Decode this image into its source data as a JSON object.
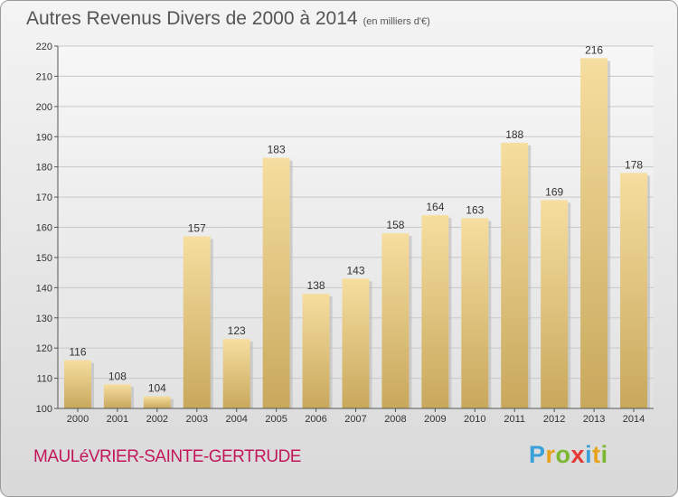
{
  "title": "Autres Revenus Divers de 2000 à 2014",
  "subtitle": "(en milliers d'€)",
  "place": "MAULéVRIER-SAINTE-GERTRUDE",
  "logo": {
    "letters": [
      "P",
      "r",
      "o",
      "x",
      "i",
      "t",
      "i"
    ],
    "colors": [
      "#3aa0d8",
      "#e8a21a",
      "#7cb82f",
      "#e53935",
      "#3aa0d8",
      "#e8a21a",
      "#7cb82f"
    ]
  },
  "chart_data": {
    "type": "bar",
    "title": "Autres Revenus Divers de 2000 à 2014",
    "subtitle": "(en milliers d'€)",
    "xlabel": "",
    "ylabel": "",
    "categories": [
      "2000",
      "2001",
      "2002",
      "2003",
      "2004",
      "2005",
      "2006",
      "2007",
      "2008",
      "2009",
      "2010",
      "2011",
      "2012",
      "2013",
      "2014"
    ],
    "values": [
      116,
      108,
      104,
      157,
      123,
      183,
      138,
      143,
      158,
      164,
      163,
      188,
      169,
      216,
      178
    ],
    "ylim": [
      100,
      220
    ],
    "yticks": [
      100,
      110,
      120,
      130,
      140,
      150,
      160,
      170,
      180,
      190,
      200,
      210,
      220
    ],
    "grid": true,
    "bar_color_top": "#f6dea0",
    "bar_color_bottom": "#c8a85c",
    "grid_color": "#c8c8c8"
  }
}
